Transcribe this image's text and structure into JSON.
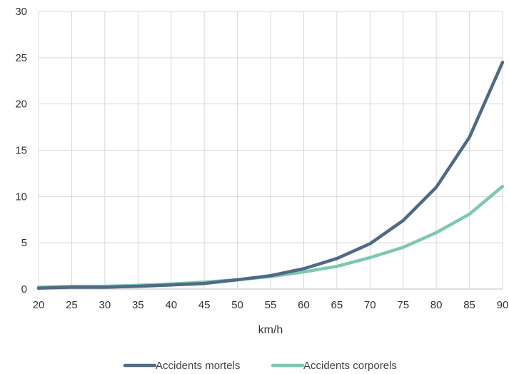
{
  "chart_data": {
    "type": "line",
    "xlabel": "km/h",
    "ylabel": "",
    "x": [
      20,
      25,
      30,
      35,
      40,
      45,
      50,
      55,
      60,
      65,
      70,
      75,
      80,
      85,
      90
    ],
    "xlim": [
      20,
      90
    ],
    "ylim": [
      0,
      30
    ],
    "yticks": [
      0,
      5,
      10,
      15,
      20,
      25,
      30
    ],
    "grid": true,
    "legend_position": "bottom-center",
    "series": [
      {
        "name": "Accidents mortels",
        "color": "#4f6a85",
        "values": [
          0.1,
          0.2,
          0.2,
          0.3,
          0.45,
          0.6,
          1.0,
          1.45,
          2.2,
          3.3,
          4.9,
          7.4,
          11.0,
          16.4,
          24.5
        ]
      },
      {
        "name": "Accidents corporels",
        "color": "#7ec8b0",
        "values": [
          0.2,
          0.3,
          0.3,
          0.4,
          0.55,
          0.75,
          1.0,
          1.35,
          1.85,
          2.45,
          3.4,
          4.5,
          6.1,
          8.1,
          11.1
        ]
      }
    ]
  }
}
